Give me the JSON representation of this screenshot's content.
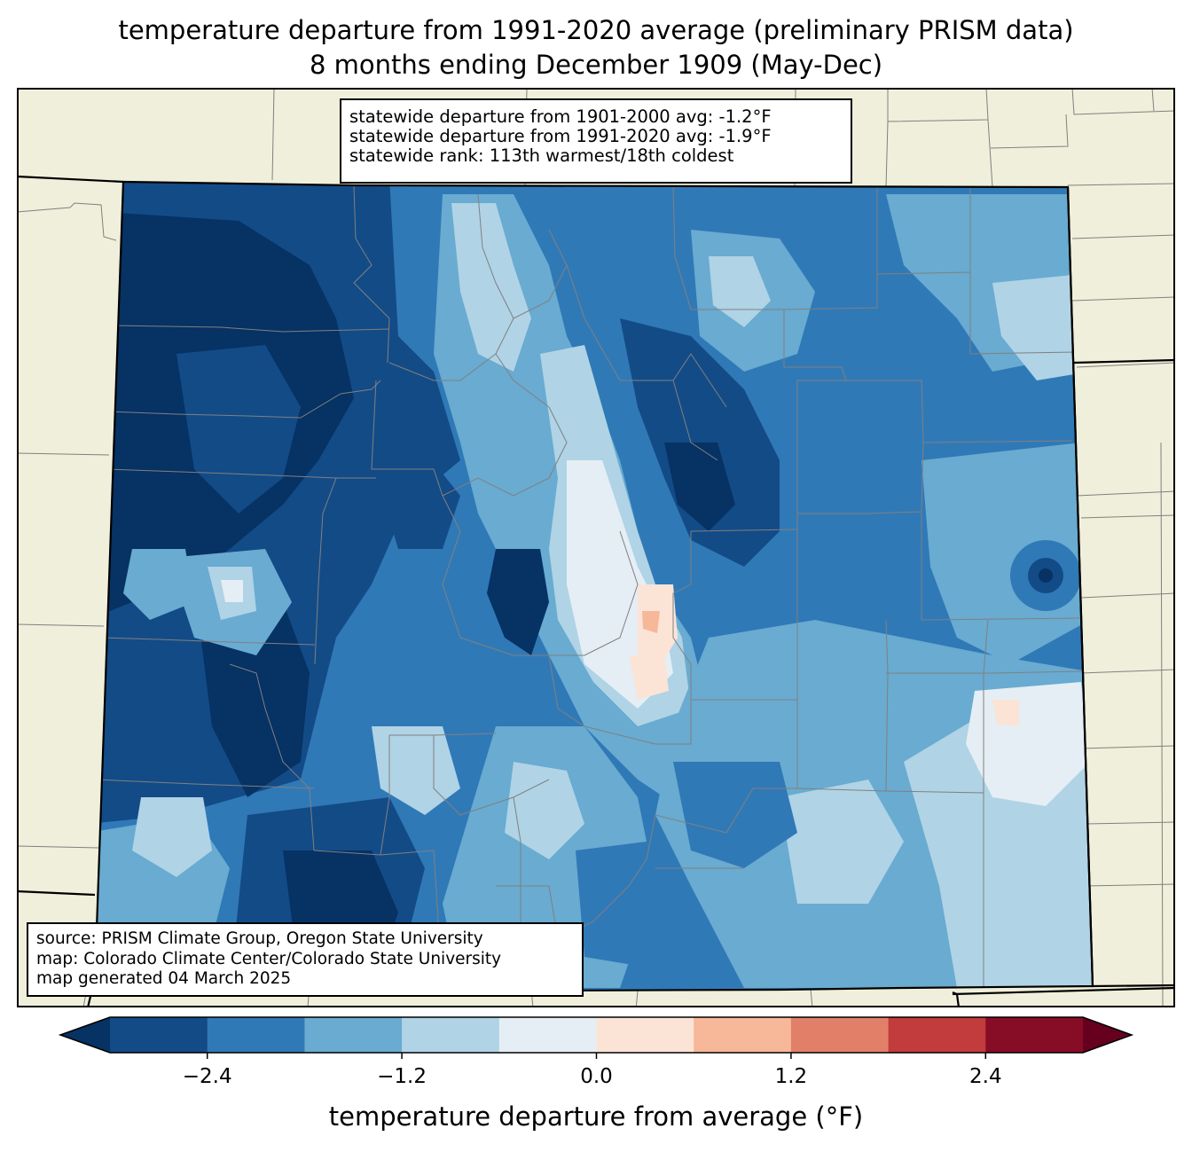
{
  "title": {
    "line1": "temperature departure from 1991-2020 average (preliminary PRISM data)",
    "line2": "8 months ending December 1909 (May-Dec)"
  },
  "stats": {
    "line1": "statewide departure from 1901-2000 avg: -1.2°F",
    "line2": "statewide departure from 1991-2020 avg: -1.9°F",
    "line3": "statewide rank: 113th warmest/18th coldest"
  },
  "source": {
    "line1": "source: PRISM Climate Group, Oregon State University",
    "line2": "map: Colorado Climate Center/Colorado State University",
    "line3": "map generated 04 March 2025"
  },
  "colorbar": {
    "label": "temperature departure from average (°F)",
    "ticks": [
      "−2.4",
      "−1.2",
      "0.0",
      "1.2",
      "2.4"
    ],
    "tick_values": [
      -2.4,
      -1.2,
      0.0,
      1.2,
      2.4
    ],
    "range": [
      -3.0,
      3.0
    ],
    "step": 0.6,
    "colors": [
      "#134b87",
      "#3079b7",
      "#69abd1",
      "#b0d3e6",
      "#e4eef4",
      "#fbe4d6",
      "#f7b799",
      "#e27f69",
      "#c23b3d",
      "#870d26"
    ],
    "under_color": "#063264",
    "over_color": "#67001f"
  },
  "map_colors": {
    "land": "#efefdb",
    "county_lines": "#808080",
    "state_lines": "#000000"
  }
}
